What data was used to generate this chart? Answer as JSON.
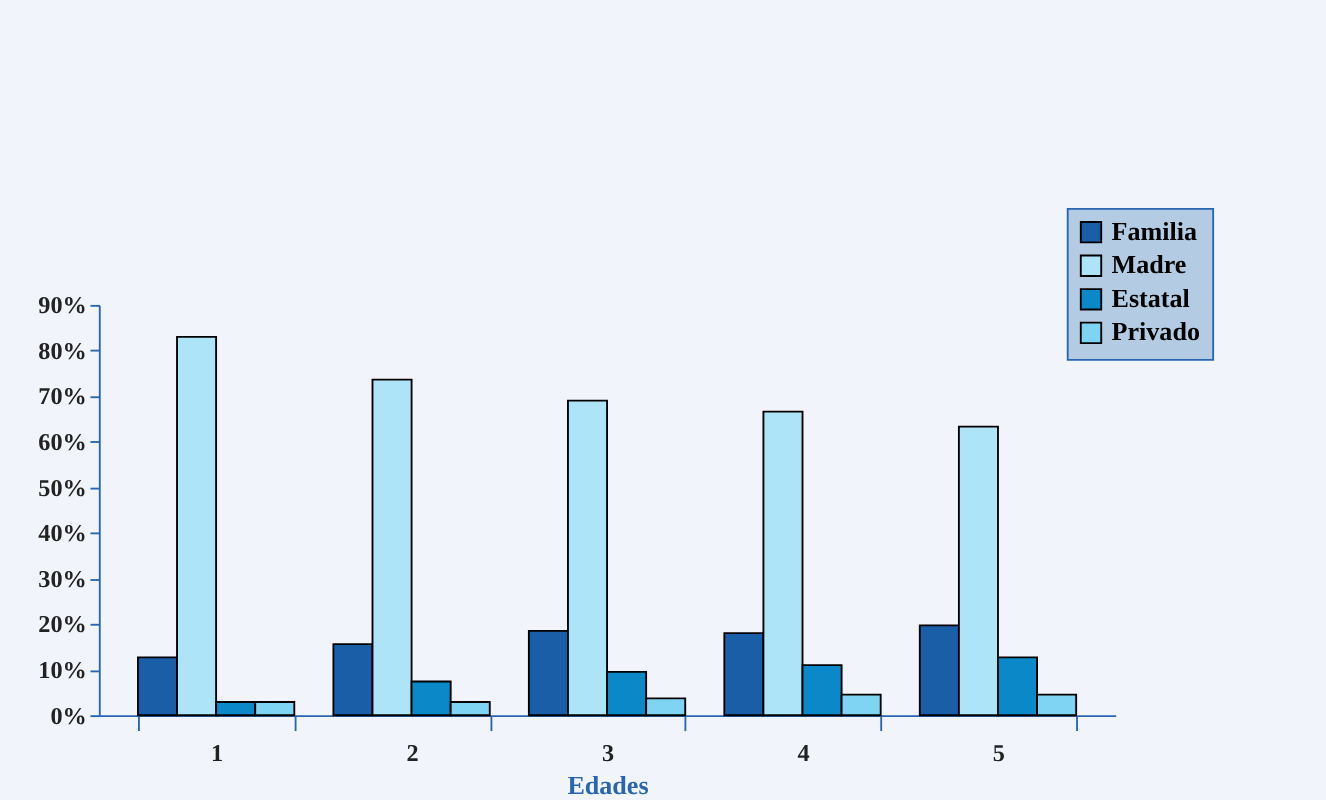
{
  "chart_data": {
    "type": "bar",
    "categories": [
      "1",
      "2",
      "3",
      "4",
      "5"
    ],
    "xlabel": "Edades",
    "series": [
      {
        "name": "Familia",
        "color": "#1a5ea8",
        "values": [
          12.7,
          15.6,
          18.5,
          18,
          19.7
        ]
      },
      {
        "name": "Madre",
        "color": "#aee4f8",
        "values": [
          83,
          73.6,
          69,
          66.6,
          63.3
        ]
      },
      {
        "name": "Estatal",
        "color": "#0a88c8",
        "values": [
          2.9,
          7.4,
          9.5,
          11,
          12.7
        ]
      },
      {
        "name": "Privado",
        "color": "#7fd4f4",
        "values": [
          2.9,
          2.9,
          3.7,
          4.5,
          4.5
        ]
      }
    ],
    "ylim": [
      0,
      90
    ],
    "yticks": [
      {
        "value": 0,
        "label": "0%"
      },
      {
        "value": 10,
        "label": "10%"
      },
      {
        "value": 20,
        "label": "20%"
      },
      {
        "value": 30,
        "label": "30%"
      },
      {
        "value": 40,
        "label": "40%"
      },
      {
        "value": 50,
        "label": "50%"
      },
      {
        "value": 60,
        "label": "60%"
      },
      {
        "value": 70,
        "label": "70%"
      },
      {
        "value": 80,
        "label": "80%"
      },
      {
        "value": 90,
        "label": "90%"
      }
    ],
    "grid": false,
    "legend": "top right"
  }
}
